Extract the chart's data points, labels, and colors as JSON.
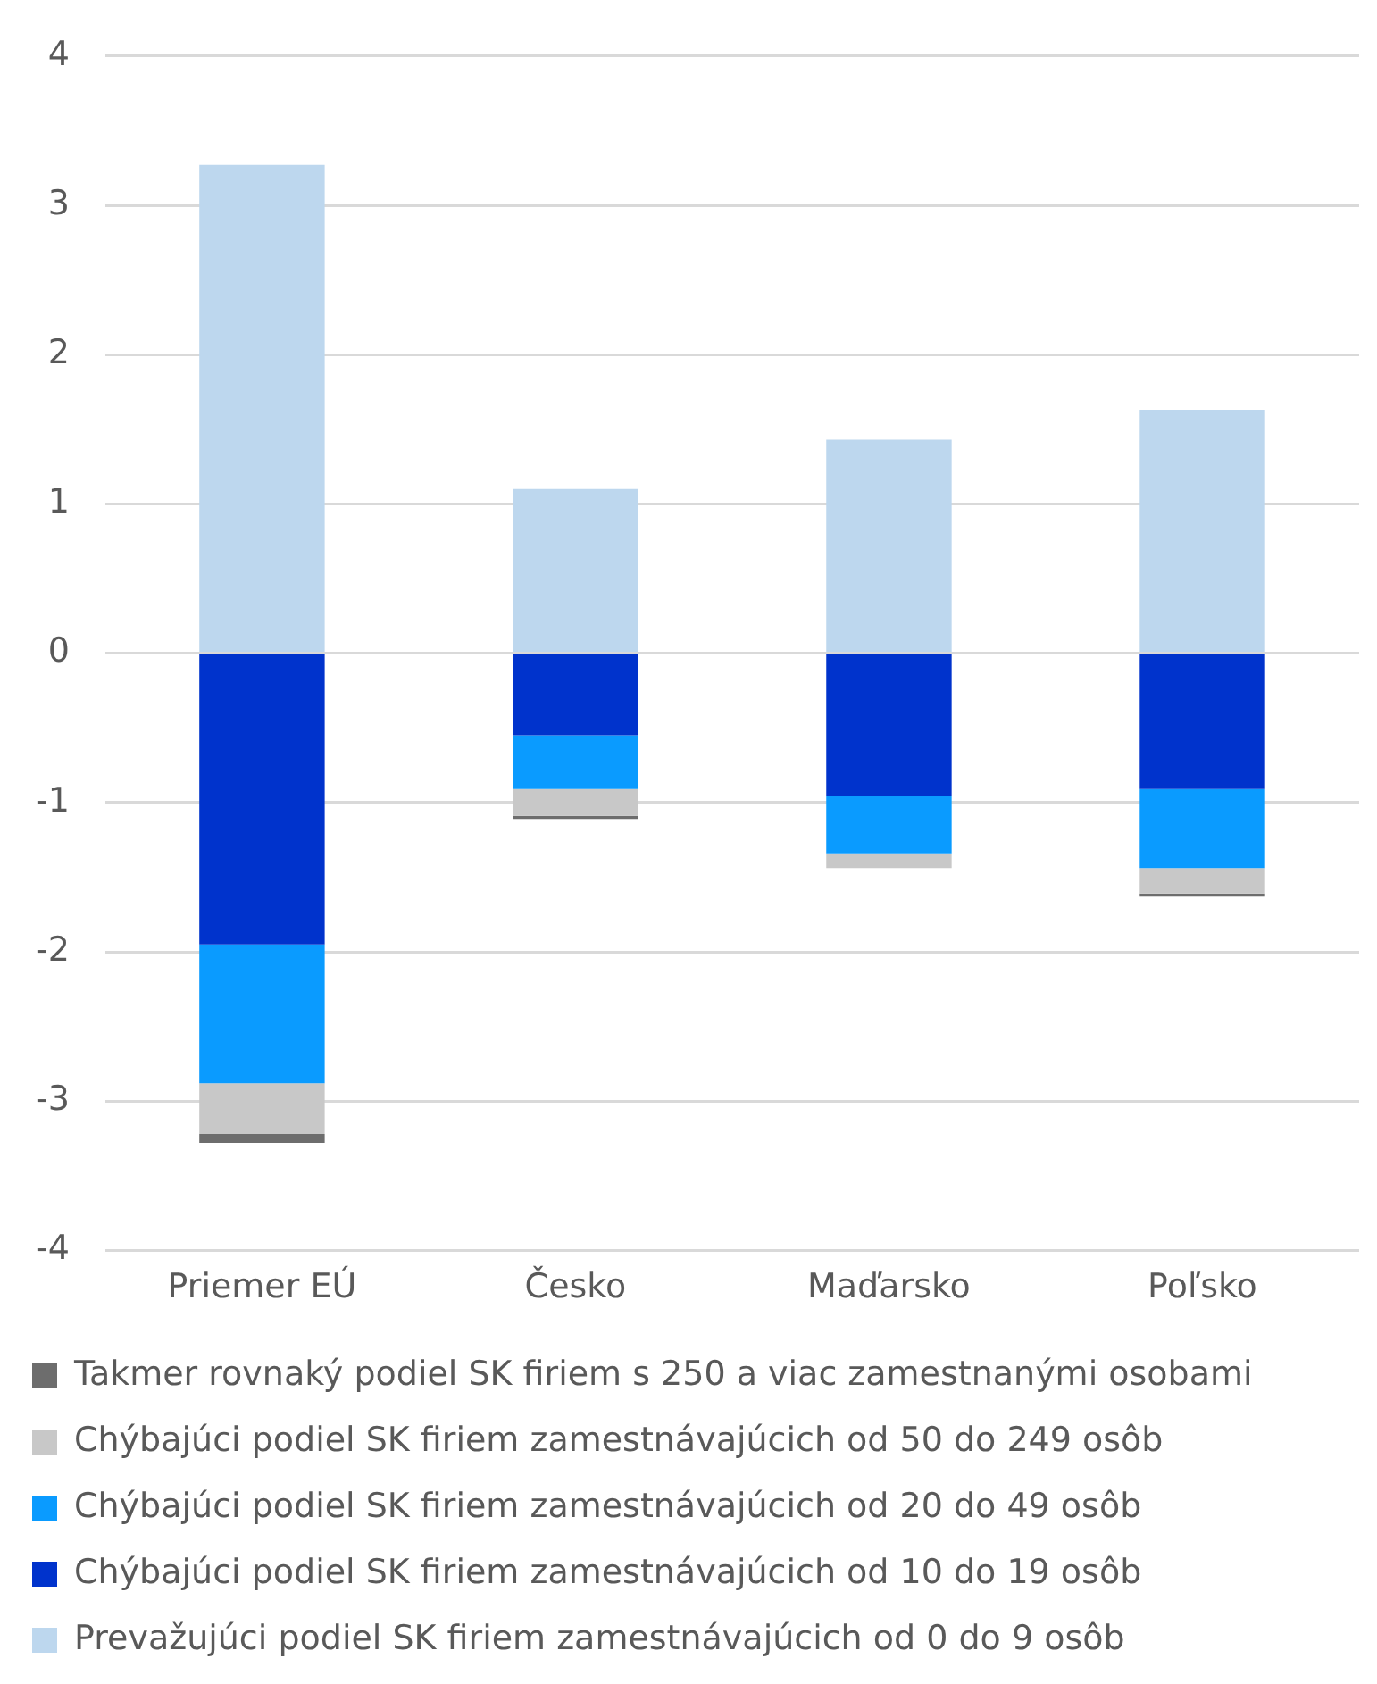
{
  "chart_data": {
    "type": "bar",
    "stacked": true,
    "categories": [
      "Priemer EÚ",
      "Česko",
      "Maďarsko",
      "Poľsko"
    ],
    "series": [
      {
        "name": "Prevažujúci podiel SK firiem zamestnávajúcich od 0 do 9 osôb",
        "color": "#bdd7ee",
        "values": [
          3.27,
          1.1,
          1.43,
          1.63
        ]
      },
      {
        "name": "Chýbajúci podiel SK firiem zamestnávajúcich od 10 do 19 osôb",
        "color": "#0033cc",
        "values": [
          -1.95,
          -0.55,
          -0.96,
          -0.91
        ]
      },
      {
        "name": "Chýbajúci podiel SK firiem zamestnávajúcich od 20 do 49 osôb",
        "color": "#0a9bff",
        "values": [
          -0.93,
          -0.36,
          -0.38,
          -0.53
        ]
      },
      {
        "name": "Chýbajúci podiel SK firiem zamestnávajúcich od 50 do 249 osôb",
        "color": "#c8c8c8",
        "values": [
          -0.34,
          -0.18,
          -0.1,
          -0.17
        ]
      },
      {
        "name": "Takmer rovnaký podiel SK firiem s 250 a viac zamestnanými osobami",
        "color": "#6d6d6d",
        "values": [
          -0.06,
          -0.02,
          null,
          -0.02
        ]
      }
    ],
    "ylim": [
      -4,
      4
    ],
    "yticks": [
      -4,
      -3,
      -2,
      -1,
      0,
      1,
      2,
      3,
      4
    ],
    "grid": "y",
    "legend": "bottom"
  }
}
